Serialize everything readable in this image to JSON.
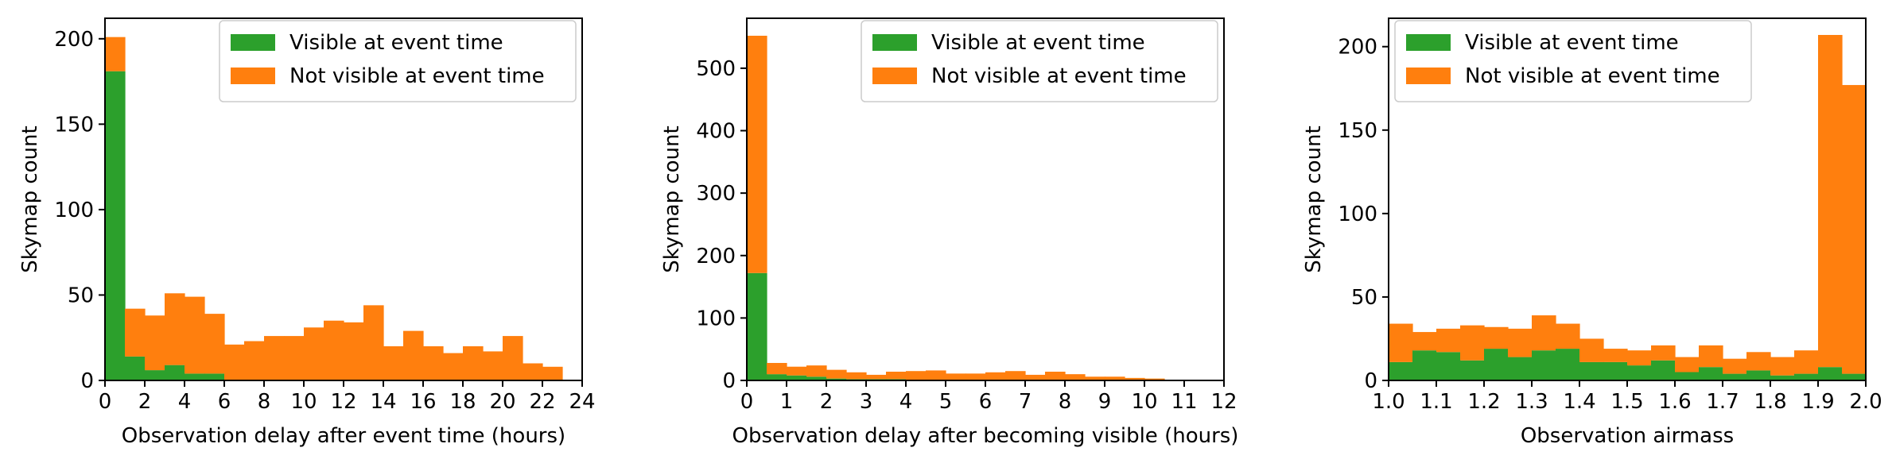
{
  "colors": {
    "visible": "#2ca02c",
    "not_visible": "#ff7f0e"
  },
  "chart_data": [
    {
      "type": "bar",
      "stacked": true,
      "xlabel": "Observation delay after event time (hours)",
      "ylabel": "Skymap count",
      "xlim": [
        0,
        24
      ],
      "ylim": [
        0,
        212
      ],
      "xticks": [
        0,
        2,
        4,
        6,
        8,
        10,
        12,
        14,
        16,
        18,
        20,
        22,
        24
      ],
      "xtick_labels": [
        "0",
        "2",
        "4",
        "6",
        "8",
        "10",
        "12",
        "14",
        "16",
        "18",
        "20",
        "22",
        "24"
      ],
      "yticks": [
        0,
        50,
        100,
        150,
        200
      ],
      "ytick_labels": [
        "0",
        "50",
        "100",
        "150",
        "200"
      ],
      "bin_start": 0,
      "bin_width": 1,
      "legend_position": "top-right",
      "series": [
        {
          "name": "Visible at event time",
          "color": "#2ca02c",
          "values": [
            181,
            14,
            6,
            9,
            4,
            4,
            0,
            0,
            0,
            0,
            0,
            0,
            0,
            0,
            0,
            0,
            0,
            0,
            0,
            0,
            0,
            0,
            0,
            0
          ]
        },
        {
          "name": "Not visible at event time",
          "color": "#ff7f0e",
          "values": [
            20,
            28,
            32,
            42,
            45,
            35,
            21,
            23,
            26,
            26,
            31,
            35,
            34,
            44,
            20,
            29,
            20,
            16,
            20,
            17,
            26,
            10,
            8,
            0
          ]
        }
      ]
    },
    {
      "type": "bar",
      "stacked": true,
      "xlabel": "Observation delay after becoming visible (hours)",
      "ylabel": "Skymap count",
      "xlim": [
        0,
        12
      ],
      "ylim": [
        0,
        580
      ],
      "xticks": [
        0,
        1,
        2,
        3,
        4,
        5,
        6,
        7,
        8,
        9,
        10,
        11,
        12
      ],
      "xtick_labels": [
        "0",
        "1",
        "2",
        "3",
        "4",
        "5",
        "6",
        "7",
        "8",
        "9",
        "10",
        "11",
        "12"
      ],
      "yticks": [
        0,
        100,
        200,
        300,
        400,
        500
      ],
      "ytick_labels": [
        "0",
        "100",
        "200",
        "300",
        "400",
        "500"
      ],
      "bin_start": 0,
      "bin_width": 0.5,
      "legend_position": "top-right",
      "series": [
        {
          "name": "Visible at event time",
          "color": "#2ca02c",
          "values": [
            172,
            10,
            8,
            6,
            3,
            2,
            2,
            2,
            1,
            1,
            1,
            1,
            1,
            1,
            1,
            1,
            1,
            1,
            0,
            0,
            0,
            0,
            0,
            0
          ]
        },
        {
          "name": "Not visible at event time",
          "color": "#ff7f0e",
          "values": [
            380,
            18,
            14,
            18,
            14,
            11,
            7,
            12,
            14,
            15,
            10,
            10,
            12,
            14,
            8,
            13,
            9,
            5,
            6,
            4,
            3,
            1,
            1,
            0
          ]
        }
      ]
    },
    {
      "type": "bar",
      "stacked": true,
      "xlabel": "Observation airmass",
      "ylabel": "Skymap count",
      "xlim": [
        1.0,
        2.0
      ],
      "ylim": [
        0,
        217
      ],
      "xticks": [
        1.0,
        1.1,
        1.2,
        1.3,
        1.4,
        1.5,
        1.6,
        1.7,
        1.8,
        1.9,
        2.0
      ],
      "xtick_labels": [
        "1.0",
        "1.1",
        "1.2",
        "1.3",
        "1.4",
        "1.5",
        "1.6",
        "1.7",
        "1.8",
        "1.9",
        "2.0"
      ],
      "yticks": [
        0,
        50,
        100,
        150,
        200
      ],
      "ytick_labels": [
        "0",
        "50",
        "100",
        "150",
        "200"
      ],
      "bin_start": 1.0,
      "bin_width": 0.05,
      "legend_position": "top-left",
      "series": [
        {
          "name": "Visible at event time",
          "color": "#2ca02c",
          "values": [
            11,
            18,
            17,
            12,
            19,
            14,
            18,
            19,
            11,
            11,
            9,
            12,
            5,
            8,
            4,
            6,
            3,
            4,
            8,
            4
          ]
        },
        {
          "name": "Not visible at event time",
          "color": "#ff7f0e",
          "values": [
            23,
            11,
            14,
            21,
            13,
            17,
            21,
            15,
            14,
            8,
            9,
            9,
            9,
            13,
            9,
            11,
            11,
            14,
            199,
            173
          ]
        }
      ]
    }
  ]
}
